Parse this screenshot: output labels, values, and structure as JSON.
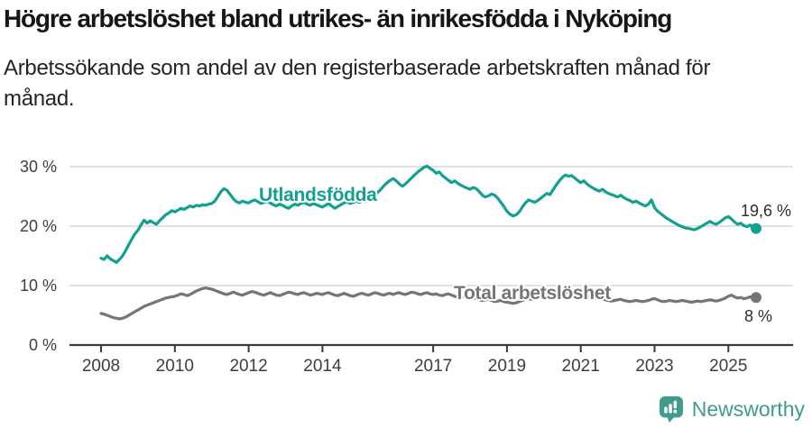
{
  "header": {
    "title": "Högre arbetslöshet bland utrikes- än inrikesfödda i Nyköping",
    "subtitle": "Arbetssökande som andel av den registerbaserade arbetskraften månad för månad."
  },
  "footer": {
    "brand": "Newsworthy"
  },
  "colors": {
    "accent_teal": "#12a090",
    "line_gray": "#757575",
    "logo_teal": "#3e9c8f",
    "gridline": "#e0e0e0",
    "axis": "#3a3a3a"
  },
  "chart_data": {
    "type": "line",
    "title": "Högre arbetslöshet bland utrikes- än inrikesfödda i Nyköping",
    "subtitle": "Arbetssökande som andel av den registerbaserade arbetskraften månad för månad.",
    "x_unit": "month",
    "x_start": "2008-01",
    "x_end": "2025-10",
    "xlim": [
      2008.0,
      2025.75
    ],
    "ylim": [
      0,
      32
    ],
    "grid": "horizontal",
    "legend_position": "inline",
    "x_ticks": [
      {
        "year": 2008,
        "label": "2008"
      },
      {
        "year": 2010,
        "label": "2010"
      },
      {
        "year": 2012,
        "label": "2012"
      },
      {
        "year": 2014,
        "label": "2014"
      },
      {
        "year": 2017,
        "label": "2017"
      },
      {
        "year": 2019,
        "label": "2019"
      },
      {
        "year": 2021,
        "label": "2021"
      },
      {
        "year": 2023,
        "label": "2023"
      },
      {
        "year": 2025,
        "label": "2025"
      }
    ],
    "y_ticks": [
      {
        "value": 0,
        "label": "0 %"
      },
      {
        "value": 10,
        "label": "10 %"
      },
      {
        "value": 20,
        "label": "20 %"
      },
      {
        "value": 30,
        "label": "30 %"
      }
    ],
    "series": [
      {
        "name": "Utlandsfödda",
        "color": "#12a090",
        "end_label": "19,6 %",
        "end_value": 19.6,
        "values": [
          14.6,
          14.4,
          15.0,
          14.5,
          14.2,
          13.9,
          14.4,
          15.0,
          15.9,
          16.9,
          17.8,
          18.7,
          19.3,
          20.2,
          21.0,
          20.5,
          20.9,
          20.6,
          20.3,
          20.9,
          21.4,
          21.9,
          22.2,
          22.6,
          22.4,
          22.7,
          23.0,
          22.8,
          23.1,
          23.4,
          23.2,
          23.5,
          23.4,
          23.6,
          23.5,
          23.7,
          23.8,
          24.2,
          25.0,
          25.8,
          26.3,
          26.0,
          25.3,
          24.6,
          24.1,
          23.9,
          24.2,
          24.0,
          23.9,
          24.2,
          24.4,
          24.1,
          23.8,
          24.0,
          24.2,
          23.9,
          23.6,
          23.4,
          23.7,
          23.5,
          23.2,
          23.0,
          23.4,
          23.7,
          23.5,
          23.8,
          24.0,
          23.7,
          23.5,
          23.8,
          23.6,
          23.4,
          23.2,
          23.5,
          23.8,
          23.4,
          23.0,
          23.3,
          23.6,
          23.9,
          24.1,
          23.8,
          24.0,
          24.2,
          24.0,
          24.3,
          24.1,
          24.5,
          24.8,
          25.2,
          25.7,
          26.2,
          26.8,
          27.3,
          27.7,
          28.0,
          27.6,
          27.1,
          26.7,
          27.1,
          27.6,
          28.1,
          28.6,
          29.1,
          29.5,
          29.9,
          30.1,
          29.7,
          29.4,
          28.9,
          29.1,
          28.5,
          28.1,
          27.7,
          27.3,
          27.6,
          27.2,
          26.9,
          26.6,
          26.4,
          26.2,
          26.5,
          26.3,
          25.8,
          25.2,
          24.9,
          25.1,
          25.4,
          25.2,
          24.7,
          24.0,
          23.3,
          22.5,
          22.0,
          21.7,
          21.9,
          22.4,
          23.2,
          23.9,
          24.4,
          24.2,
          24.0,
          24.3,
          24.7,
          25.1,
          25.5,
          25.3,
          26.1,
          26.9,
          27.6,
          28.2,
          28.6,
          28.4,
          28.5,
          28.1,
          27.7,
          27.3,
          27.6,
          27.1,
          26.7,
          26.4,
          26.1,
          25.9,
          26.2,
          25.8,
          25.5,
          25.3,
          25.1,
          24.9,
          25.2,
          24.8,
          24.5,
          24.3,
          24.0,
          24.2,
          23.9,
          23.6,
          23.4,
          23.7,
          24.4,
          23.1,
          22.5,
          22.1,
          21.7,
          21.3,
          21.0,
          20.7,
          20.4,
          20.1,
          19.9,
          19.7,
          19.6,
          19.5,
          19.4,
          19.6,
          19.9,
          20.2,
          20.5,
          20.8,
          20.5,
          20.3,
          20.6,
          21.0,
          21.4,
          21.6,
          21.2,
          20.7,
          20.3,
          20.5,
          20.1,
          19.9,
          20.2,
          19.8,
          19.6
        ]
      },
      {
        "name": "Total arbetslöshet",
        "color": "#757575",
        "end_label": "8 %",
        "end_value": 8.0,
        "values": [
          5.3,
          5.2,
          5.0,
          4.8,
          4.6,
          4.5,
          4.4,
          4.5,
          4.7,
          5.0,
          5.3,
          5.6,
          5.9,
          6.2,
          6.5,
          6.7,
          6.9,
          7.1,
          7.3,
          7.5,
          7.7,
          7.9,
          8.0,
          8.1,
          8.2,
          8.4,
          8.6,
          8.5,
          8.3,
          8.5,
          8.8,
          9.1,
          9.3,
          9.5,
          9.6,
          9.5,
          9.4,
          9.2,
          9.0,
          8.8,
          8.6,
          8.5,
          8.7,
          8.9,
          8.7,
          8.5,
          8.4,
          8.6,
          8.8,
          9.0,
          8.9,
          8.7,
          8.5,
          8.4,
          8.6,
          8.8,
          8.6,
          8.4,
          8.3,
          8.5,
          8.7,
          8.9,
          8.8,
          8.6,
          8.5,
          8.7,
          8.8,
          8.6,
          8.4,
          8.5,
          8.7,
          8.6,
          8.5,
          8.7,
          8.8,
          8.6,
          8.4,
          8.3,
          8.5,
          8.7,
          8.5,
          8.3,
          8.2,
          8.4,
          8.6,
          8.7,
          8.5,
          8.4,
          8.6,
          8.8,
          8.7,
          8.5,
          8.4,
          8.6,
          8.7,
          8.5,
          8.7,
          8.8,
          8.6,
          8.5,
          8.7,
          8.9,
          8.8,
          8.6,
          8.5,
          8.7,
          8.8,
          8.6,
          8.5,
          8.6,
          8.4,
          8.3,
          8.5,
          8.6,
          8.4,
          8.2,
          8.0,
          8.1,
          8.2,
          8.0,
          7.9,
          8.0,
          7.8,
          7.6,
          7.5,
          7.6,
          7.7,
          7.5,
          7.3,
          7.4,
          7.5,
          7.3,
          7.2,
          7.1,
          7.0,
          7.1,
          7.3,
          7.5,
          7.7,
          7.8,
          7.7,
          7.8,
          8.0,
          8.1,
          8.2,
          8.3,
          8.5,
          8.7,
          8.9,
          9.0,
          8.9,
          8.8,
          8.9,
          8.8,
          8.7,
          8.6,
          8.5,
          8.4,
          8.2,
          8.1,
          7.9,
          7.8,
          7.7,
          7.8,
          7.6,
          7.5,
          7.4,
          7.5,
          7.6,
          7.7,
          7.5,
          7.4,
          7.3,
          7.4,
          7.5,
          7.4,
          7.3,
          7.4,
          7.5,
          7.7,
          7.8,
          7.6,
          7.4,
          7.3,
          7.4,
          7.5,
          7.4,
          7.3,
          7.4,
          7.5,
          7.4,
          7.3,
          7.2,
          7.3,
          7.4,
          7.3,
          7.4,
          7.5,
          7.6,
          7.5,
          7.4,
          7.5,
          7.7,
          7.9,
          8.2,
          8.4,
          8.1,
          7.9,
          8.0,
          7.8,
          7.9,
          8.1,
          8.0,
          8.0
        ]
      }
    ]
  }
}
